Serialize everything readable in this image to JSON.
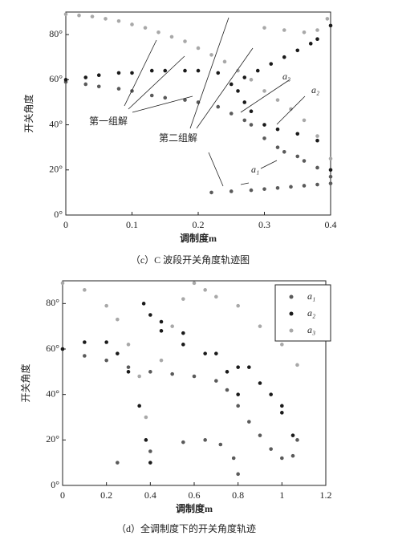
{
  "chart_data": [
    {
      "type": "scatter",
      "xlabel": "调制度m",
      "ylabel": "开关角度",
      "caption": "（c）C 波段开关角度轨迹图",
      "annotations": [
        "第一组解",
        "第二组解"
      ],
      "xlim": [
        0,
        0.4
      ],
      "ylim": [
        0,
        90
      ],
      "xticks": [
        0,
        0.1,
        0.2,
        0.3,
        0.4
      ],
      "yticks": [
        {
          "value": 0,
          "label": "0°"
        },
        {
          "value": 20,
          "label": "20°"
        },
        {
          "value": 40,
          "label": "40°"
        },
        {
          "value": 60,
          "label": "60°"
        },
        {
          "value": 80,
          "label": "80°"
        }
      ],
      "series": [
        {
          "name": "a₁",
          "color": "#5a5a5a",
          "x": [
            0,
            0.03,
            0.05,
            0.08,
            0.1,
            0.13,
            0.15,
            0.18,
            0.2,
            0.23,
            0.25,
            0.27,
            0.28,
            0.3,
            0.32,
            0.33,
            0.35,
            0.36,
            0.38,
            0.4,
            0.22,
            0.25,
            0.28,
            0.3,
            0.32,
            0.34,
            0.36,
            0.38,
            0.4
          ],
          "values": [
            59,
            58,
            57,
            56,
            55,
            53,
            52,
            51,
            50,
            48,
            45,
            42,
            40,
            34,
            30,
            28,
            26,
            24,
            21,
            17,
            10,
            10.5,
            11,
            11.5,
            12,
            12.5,
            13,
            13.5,
            14
          ]
        },
        {
          "name": "a₂",
          "color": "#1a1a1a",
          "x": [
            0,
            0.03,
            0.05,
            0.08,
            0.1,
            0.13,
            0.15,
            0.18,
            0.2,
            0.23,
            0.25,
            0.26,
            0.27,
            0.28,
            0.3,
            0.32,
            0.35,
            0.38,
            0.4,
            0.27,
            0.29,
            0.31,
            0.33,
            0.35,
            0.37,
            0.38,
            0.4
          ],
          "values": [
            60,
            61,
            62,
            63,
            63,
            64,
            64,
            64,
            64,
            63,
            58,
            55,
            50,
            46,
            40,
            38,
            36,
            33,
            20,
            61,
            64,
            67,
            70,
            73,
            76,
            78,
            84
          ]
        },
        {
          "name": "a₃",
          "color": "#a8a8a8",
          "x": [
            0,
            0.02,
            0.04,
            0.06,
            0.08,
            0.1,
            0.12,
            0.14,
            0.16,
            0.18,
            0.2,
            0.22,
            0.24,
            0.26,
            0.28,
            0.3,
            0.32,
            0.34,
            0.36,
            0.38,
            0.4,
            0.3,
            0.33,
            0.36,
            0.38,
            0.395
          ],
          "values": [
            89,
            88.5,
            88,
            87,
            86,
            84.5,
            83,
            81,
            79,
            77,
            74,
            71,
            68,
            64,
            60,
            55,
            51,
            47,
            42,
            35,
            25,
            83,
            82,
            81,
            82,
            87
          ]
        }
      ]
    },
    {
      "type": "scatter",
      "xlabel": "调制度m",
      "ylabel": "开关角度",
      "caption": "（d）全调制度下的开关角度轨迹",
      "legend": "upper right",
      "xlim": [
        0,
        1.2
      ],
      "ylim": [
        0,
        90
      ],
      "xticks": [
        0,
        0.2,
        0.4,
        0.6,
        0.8,
        1,
        1.2
      ],
      "yticks": [
        {
          "value": 0,
          "label": "0°"
        },
        {
          "value": 20,
          "label": "20°"
        },
        {
          "value": 40,
          "label": "40°"
        },
        {
          "value": 60,
          "label": "60°"
        },
        {
          "value": 80,
          "label": "80°"
        }
      ],
      "series": [
        {
          "name": "a₁",
          "color": "#5a5a5a",
          "x": [
            0,
            0.1,
            0.2,
            0.3,
            0.4,
            0.5,
            0.6,
            0.7,
            0.75,
            0.8,
            0.85,
            0.9,
            0.95,
            1.0,
            1.05,
            1.07,
            0.25,
            0.4,
            0.55,
            0.65,
            0.72,
            0.78,
            0.8
          ],
          "values": [
            60,
            57,
            55,
            52,
            50,
            49,
            48,
            46,
            42,
            35,
            28,
            22,
            16,
            12,
            13,
            20,
            10,
            15,
            19,
            20,
            18,
            12,
            5
          ]
        },
        {
          "name": "a₂",
          "color": "#1a1a1a",
          "x": [
            0,
            0.1,
            0.2,
            0.25,
            0.3,
            0.35,
            0.38,
            0.4,
            0.37,
            0.4,
            0.45,
            0.55,
            0.65,
            0.75,
            0.8,
            0.85,
            0.95,
            1.0,
            1.05,
            0.45,
            0.55,
            0.7,
            0.8,
            0.9,
            1.0
          ],
          "values": [
            60,
            63,
            63,
            58,
            50,
            35,
            20,
            10,
            80,
            75,
            68,
            62,
            58,
            50,
            40,
            52,
            40,
            32,
            22,
            72,
            67,
            58,
            52,
            45,
            35
          ]
        },
        {
          "name": "a₃",
          "color": "#a8a8a8",
          "x": [
            0,
            0.1,
            0.2,
            0.25,
            0.3,
            0.35,
            0.38,
            0.45,
            0.5,
            0.55,
            0.6,
            0.65,
            0.7,
            0.8,
            0.9,
            1.0,
            1.07
          ],
          "values": [
            89,
            86,
            79,
            73,
            62,
            48,
            30,
            55,
            70,
            82,
            89,
            86,
            83,
            79,
            70,
            62,
            53
          ]
        }
      ]
    }
  ]
}
